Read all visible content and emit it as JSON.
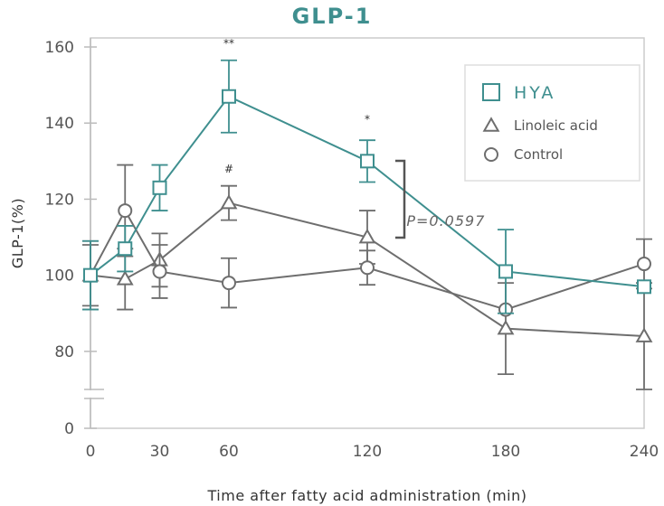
{
  "chart_data": {
    "type": "line",
    "title": "GLP-1",
    "xlabel": "Time after fatty acid administration (min)",
    "ylabel": "GLP-1(%)",
    "x_ticks": [
      0,
      30,
      60,
      120,
      180,
      240
    ],
    "y_ticks": [
      0,
      80,
      100,
      120,
      140,
      160
    ],
    "ylim": [
      0,
      160
    ],
    "xlim": [
      0,
      240
    ],
    "y_axis_break": true,
    "grid": false,
    "legend_position": "top-right",
    "series": [
      {
        "name": "HYA",
        "marker": "square",
        "color": "#3f8f8f",
        "x": [
          0,
          15,
          30,
          60,
          120,
          180,
          240
        ],
        "y": [
          100,
          107,
          123,
          147,
          130,
          101,
          97
        ],
        "err": [
          9,
          6,
          6,
          9.5,
          5.5,
          11,
          0
        ]
      },
      {
        "name": "Linoleic acid",
        "marker": "triangle",
        "color": "#6e6e6e",
        "x": [
          0,
          15,
          30,
          60,
          120,
          180,
          240
        ],
        "y": [
          100,
          99,
          104,
          119,
          110,
          86,
          84
        ],
        "err": [
          8,
          8,
          7,
          4.5,
          7,
          12,
          14
        ]
      },
      {
        "name": "Control",
        "marker": "circle",
        "color": "#6e6e6e",
        "x": [
          0,
          15,
          30,
          60,
          120,
          180,
          240
        ],
        "y": [
          100,
          117,
          101,
          98,
          102,
          91,
          103
        ],
        "err": [
          9,
          12,
          7,
          6.5,
          4.5,
          0,
          6.5
        ]
      }
    ],
    "annotations": [
      {
        "text": "**",
        "x": 60,
        "y": 160
      },
      {
        "text": "*",
        "x": 120,
        "y": 140
      },
      {
        "text": "#",
        "x": 60,
        "y": 127
      },
      {
        "text": "P=0.0597",
        "x": 137,
        "y": 113
      }
    ]
  }
}
